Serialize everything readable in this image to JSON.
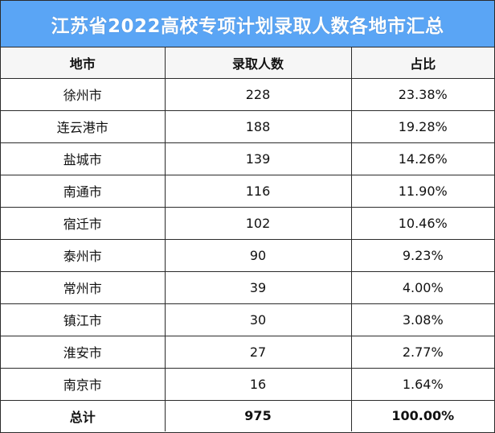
{
  "title": "江苏省2022高校专项计划录取人数各地市汇总",
  "columns": [
    "地市",
    "录取人数",
    "占比"
  ],
  "rows": [
    {
      "city": "徐州市",
      "count": "228",
      "share": "23.38%"
    },
    {
      "city": "连云港市",
      "count": "188",
      "share": "19.28%"
    },
    {
      "city": "盐城市",
      "count": "139",
      "share": "14.26%"
    },
    {
      "city": "南通市",
      "count": "116",
      "share": "11.90%"
    },
    {
      "city": "宿迁市",
      "count": "102",
      "share": "10.46%"
    },
    {
      "city": "泰州市",
      "count": "90",
      "share": "9.23%"
    },
    {
      "city": "常州市",
      "count": "39",
      "share": "4.00%"
    },
    {
      "city": "镇江市",
      "count": "30",
      "share": "3.08%"
    },
    {
      "city": "淮安市",
      "count": "27",
      "share": "2.77%"
    },
    {
      "city": "南京市",
      "count": "16",
      "share": "1.64%"
    }
  ],
  "total": {
    "city": "总计",
    "count": "975",
    "share": "100.00%"
  },
  "colors": {
    "title_bg": "#5aa5f5",
    "title_text": "#ffffff",
    "header_bg": "#f6f6f6",
    "border": "#2b2b2b"
  }
}
